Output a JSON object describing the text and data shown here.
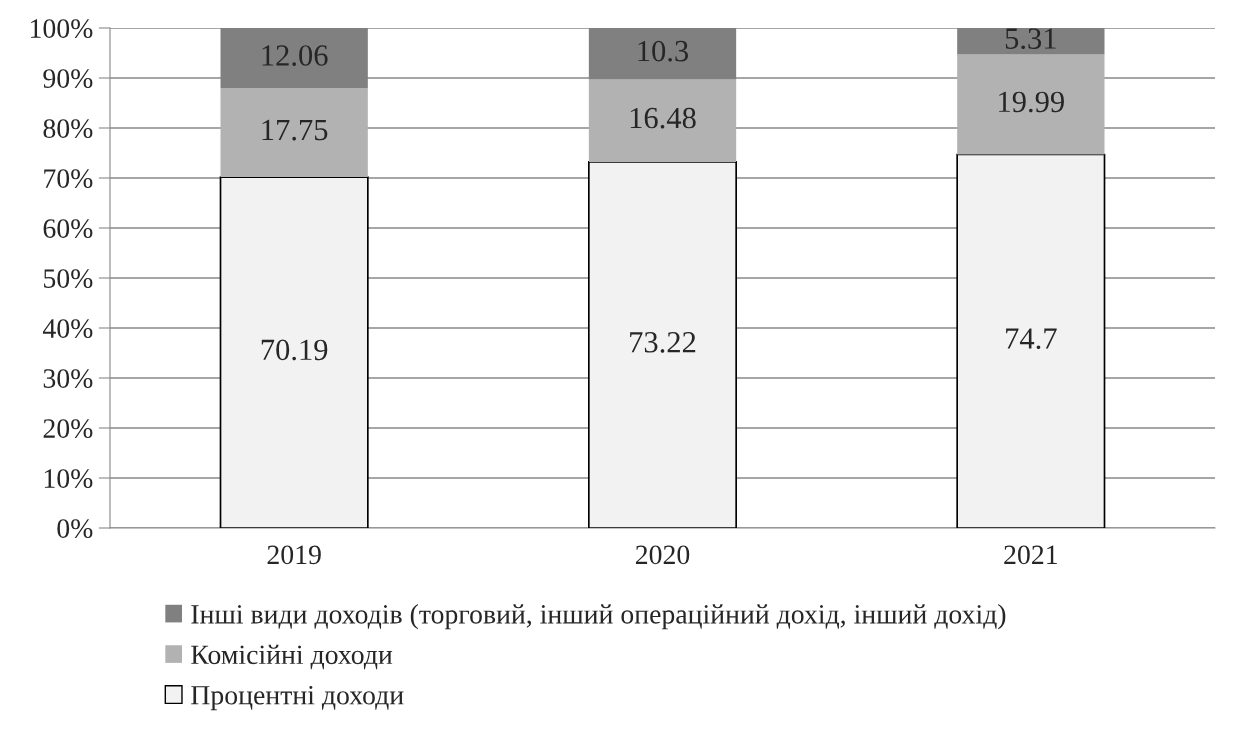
{
  "chart_data": {
    "type": "bar",
    "stacked": true,
    "categories": [
      "2019",
      "2020",
      "2021"
    ],
    "series": [
      {
        "name": "Процентні доходи",
        "color": "#f2f2f2",
        "values": [
          70.19,
          73.22,
          74.7
        ]
      },
      {
        "name": "Комісійні доходи",
        "color": "#b2b2b2",
        "values": [
          17.75,
          16.48,
          19.99
        ]
      },
      {
        "name": "Інші види доходів (торговий, інший операційний дохід, інший дохід)",
        "color": "#808080",
        "values": [
          12.06,
          10.3,
          5.31
        ]
      }
    ],
    "ylim": [
      0,
      100
    ],
    "yticks": [
      {
        "value": 0,
        "label": "0%"
      },
      {
        "value": 10,
        "label": "10%"
      },
      {
        "value": 20,
        "label": "20%"
      },
      {
        "value": 30,
        "label": "30%"
      },
      {
        "value": 40,
        "label": "40%"
      },
      {
        "value": 50,
        "label": "50%"
      },
      {
        "value": 60,
        "label": "60%"
      },
      {
        "value": 70,
        "label": "70%"
      },
      {
        "value": 80,
        "label": "80%"
      },
      {
        "value": 90,
        "label": "90%"
      },
      {
        "value": 100,
        "label": "100%"
      }
    ],
    "grid": "y",
    "legend": "bottom",
    "data_labels": true
  }
}
